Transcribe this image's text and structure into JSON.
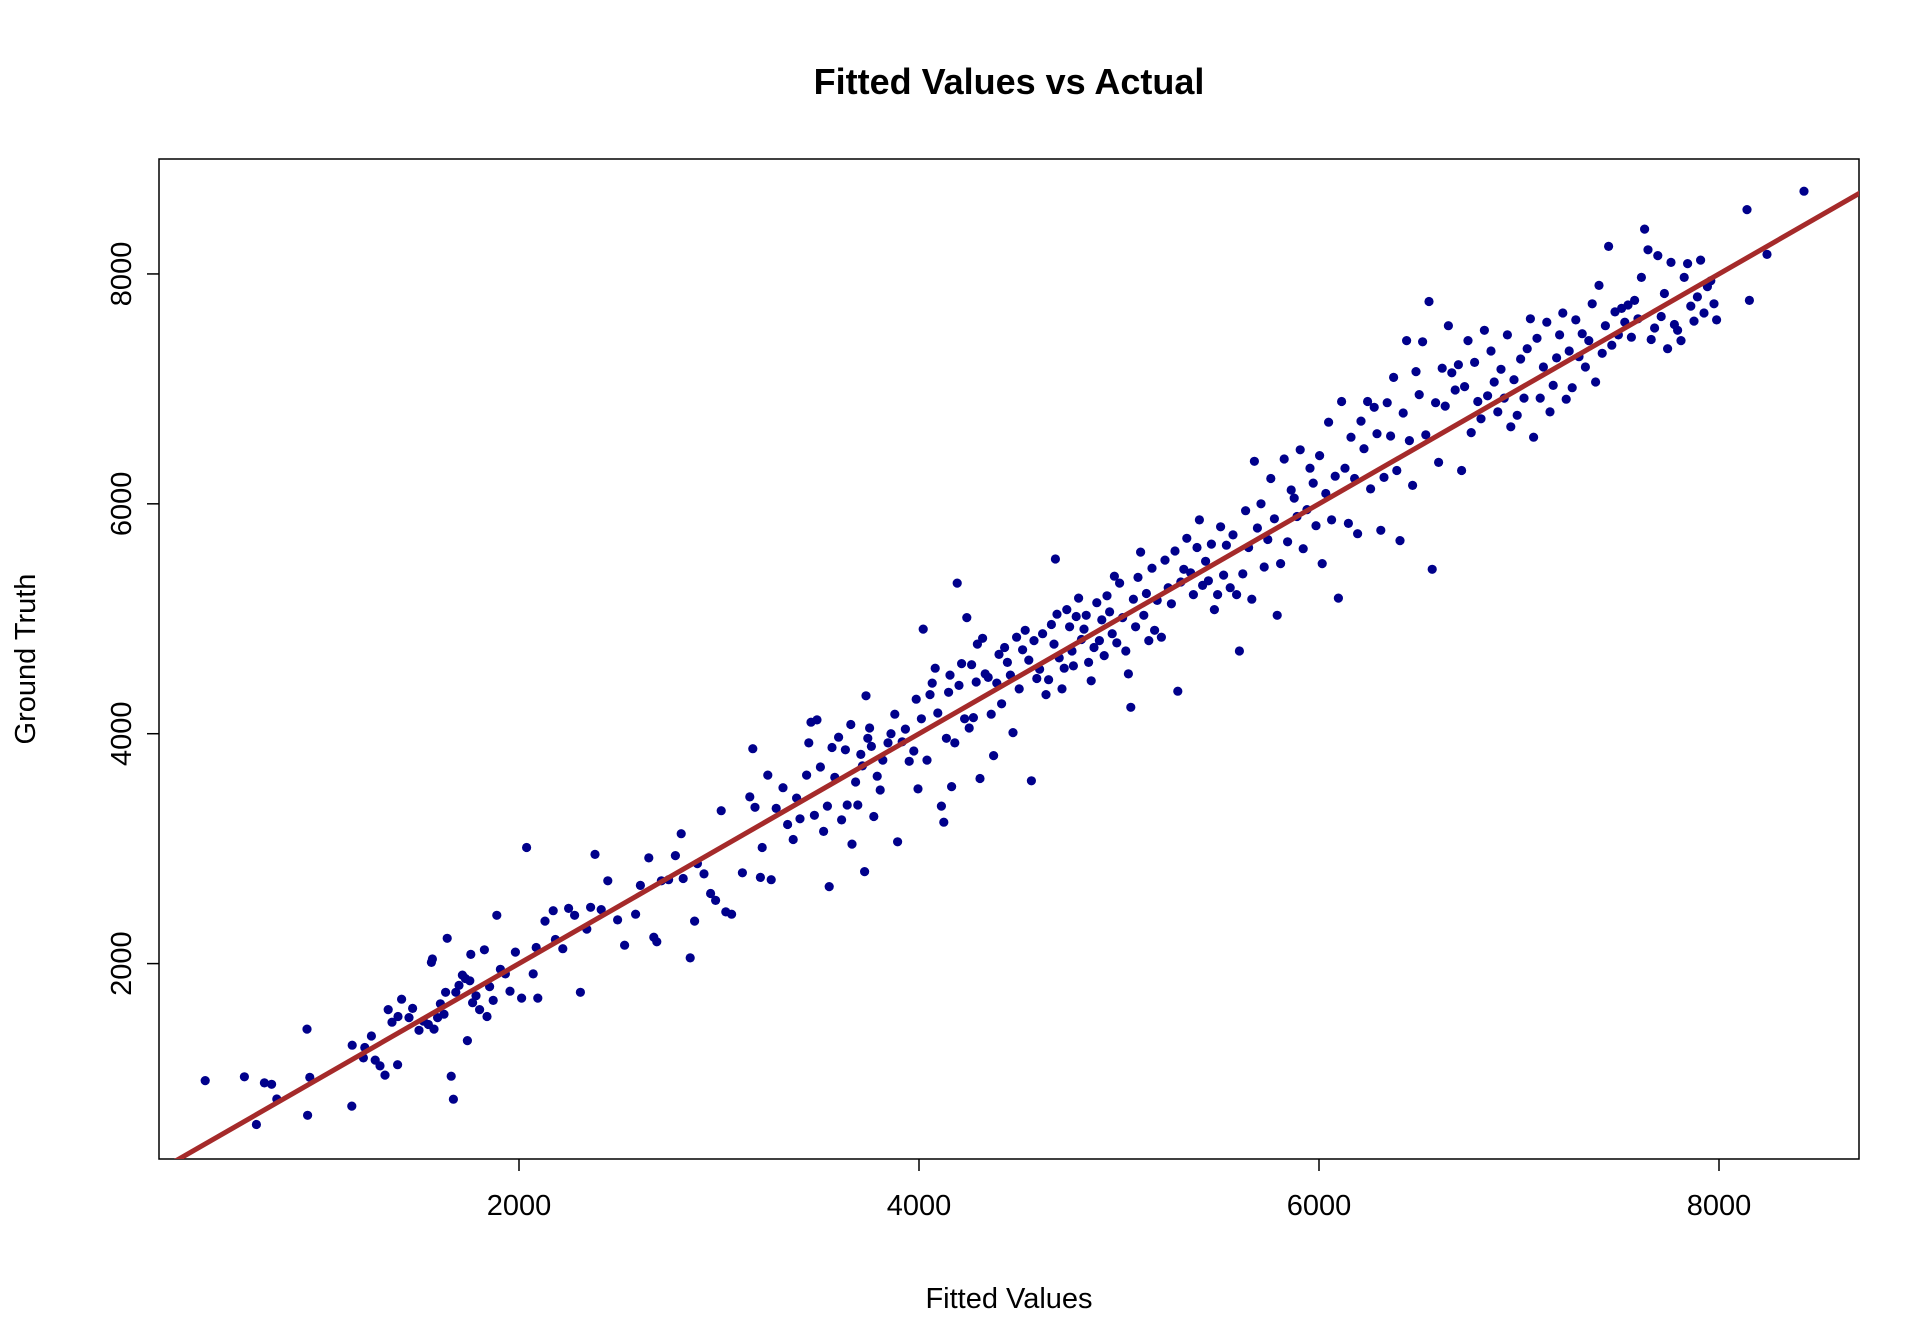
{
  "chart_data": {
    "type": "scatter",
    "title": "Fitted Values vs Actual",
    "xlabel": "Fitted Values",
    "ylabel": "Ground Truth",
    "xlim": [
      200,
      8700
    ],
    "ylim": [
      300,
      9000
    ],
    "xticks": [
      "2000",
      "4000",
      "6000",
      "8000"
    ],
    "yticks": [
      "2000",
      "4000",
      "6000",
      "8000"
    ],
    "grid": false,
    "point_color": "#00008B",
    "line_color": "#A52A2A",
    "reference_line": {
      "slope": 1,
      "intercept": 0
    },
    "points": [
      [
        431,
        982
      ],
      [
        627,
        1015
      ],
      [
        687,
        600
      ],
      [
        727,
        962
      ],
      [
        763,
        950
      ],
      [
        789,
        822
      ],
      [
        940,
        1430
      ],
      [
        943,
        680
      ],
      [
        954,
        1010
      ],
      [
        1164,
        760
      ],
      [
        1166,
        1290
      ],
      [
        1222,
        1180
      ],
      [
        1229,
        1270
      ],
      [
        1262,
        1370
      ],
      [
        1281,
        1160
      ],
      [
        1305,
        1110
      ],
      [
        1330,
        1030
      ],
      [
        1346,
        1600
      ],
      [
        1365,
        1490
      ],
      [
        1393,
        1120
      ],
      [
        1395,
        1540
      ],
      [
        1413,
        1690
      ],
      [
        1450,
        1530
      ],
      [
        1468,
        1610
      ],
      [
        1500,
        1420
      ],
      [
        1522,
        1500
      ],
      [
        1547,
        1470
      ],
      [
        1562,
        2010
      ],
      [
        1567,
        2040
      ],
      [
        1575,
        1430
      ],
      [
        1593,
        1530
      ],
      [
        1607,
        1650
      ],
      [
        1625,
        1560
      ],
      [
        1633,
        1750
      ],
      [
        1641,
        2220
      ],
      [
        1661,
        1020
      ],
      [
        1672,
        820
      ],
      [
        1684,
        1750
      ],
      [
        1700,
        1810
      ],
      [
        1717,
        1900
      ],
      [
        1732,
        1870
      ],
      [
        1742,
        1330
      ],
      [
        1754,
        1850
      ],
      [
        1759,
        2080
      ],
      [
        1768,
        1660
      ],
      [
        1785,
        1720
      ],
      [
        1803,
        1600
      ],
      [
        1827,
        2120
      ],
      [
        1840,
        1540
      ],
      [
        1853,
        1800
      ],
      [
        1871,
        1680
      ],
      [
        1889,
        2420
      ],
      [
        1907,
        1950
      ],
      [
        1932,
        1910
      ],
      [
        1955,
        1760
      ],
      [
        1982,
        2100
      ],
      [
        2013,
        1700
      ],
      [
        2038,
        3010
      ],
      [
        2071,
        1910
      ],
      [
        2086,
        2140
      ],
      [
        2094,
        1700
      ],
      [
        2130,
        2370
      ],
      [
        2171,
        2460
      ],
      [
        2182,
        2210
      ],
      [
        2219,
        2130
      ],
      [
        2248,
        2480
      ],
      [
        2278,
        2420
      ],
      [
        2307,
        1750
      ],
      [
        2339,
        2300
      ],
      [
        2358,
        2490
      ],
      [
        2380,
        2950
      ],
      [
        2411,
        2470
      ],
      [
        2444,
        2720
      ],
      [
        2493,
        2380
      ],
      [
        2528,
        2160
      ],
      [
        2583,
        2430
      ],
      [
        2607,
        2680
      ],
      [
        2649,
        2920
      ],
      [
        2674,
        2230
      ],
      [
        2689,
        2190
      ],
      [
        2712,
        2720
      ],
      [
        2748,
        2730
      ],
      [
        2782,
        2940
      ],
      [
        2811,
        3130
      ],
      [
        2821,
        2740
      ],
      [
        2856,
        2050
      ],
      [
        2878,
        2370
      ],
      [
        2892,
        2870
      ],
      [
        2925,
        2780
      ],
      [
        2958,
        2610
      ],
      [
        2983,
        2550
      ],
      [
        3011,
        3330
      ],
      [
        3034,
        2450
      ],
      [
        3063,
        2430
      ],
      [
        3117,
        2790
      ],
      [
        3154,
        3450
      ],
      [
        3169,
        3870
      ],
      [
        3180,
        3360
      ],
      [
        3207,
        2750
      ],
      [
        3216,
        3010
      ],
      [
        3244,
        3640
      ],
      [
        3261,
        2730
      ],
      [
        3286,
        3350
      ],
      [
        3320,
        3530
      ],
      [
        3343,
        3210
      ],
      [
        3371,
        3080
      ],
      [
        3388,
        3440
      ],
      [
        3405,
        3260
      ],
      [
        3438,
        3640
      ],
      [
        3449,
        3920
      ],
      [
        3460,
        4100
      ],
      [
        3477,
        3290
      ],
      [
        3490,
        4120
      ],
      [
        3507,
        3710
      ],
      [
        3523,
        3150
      ],
      [
        3542,
        3370
      ],
      [
        3551,
        2670
      ],
      [
        3565,
        3880
      ],
      [
        3579,
        3620
      ],
      [
        3598,
        3970
      ],
      [
        3613,
        3250
      ],
      [
        3632,
        3860
      ],
      [
        3641,
        3380
      ],
      [
        3659,
        4080
      ],
      [
        3665,
        3040
      ],
      [
        3683,
        3580
      ],
      [
        3694,
        3380
      ],
      [
        3709,
        3820
      ],
      [
        3717,
        3720
      ],
      [
        3728,
        2800
      ],
      [
        3735,
        4330
      ],
      [
        3744,
        3960
      ],
      [
        3753,
        4050
      ],
      [
        3762,
        3890
      ],
      [
        3774,
        3280
      ],
      [
        3791,
        3630
      ],
      [
        3806,
        3510
      ],
      [
        3819,
        3770
      ],
      [
        3845,
        3920
      ],
      [
        3860,
        4000
      ],
      [
        3879,
        4170
      ],
      [
        3893,
        3060
      ],
      [
        3916,
        3930
      ],
      [
        3932,
        4040
      ],
      [
        3951,
        3760
      ],
      [
        3974,
        3850
      ],
      [
        3986,
        4300
      ],
      [
        3995,
        3520
      ],
      [
        4012,
        4130
      ],
      [
        4021,
        4910
      ],
      [
        4040,
        3770
      ],
      [
        4055,
        4340
      ],
      [
        4066,
        4440
      ],
      [
        4081,
        4570
      ],
      [
        4094,
        4180
      ],
      [
        4112,
        3370
      ],
      [
        4124,
        3230
      ],
      [
        4137,
        3960
      ],
      [
        4148,
        4360
      ],
      [
        4155,
        4510
      ],
      [
        4163,
        3540
      ],
      [
        4179,
        3920
      ],
      [
        4191,
        5310
      ],
      [
        4200,
        4420
      ],
      [
        4213,
        4610
      ],
      [
        4228,
        4130
      ],
      [
        4239,
        5010
      ],
      [
        4251,
        4050
      ],
      [
        4263,
        4600
      ],
      [
        4272,
        4140
      ],
      [
        4286,
        4450
      ],
      [
        4292,
        4780
      ],
      [
        4305,
        3610
      ],
      [
        4318,
        4830
      ],
      [
        4331,
        4520
      ],
      [
        4346,
        4490
      ],
      [
        4361,
        4170
      ],
      [
        4373,
        3810
      ],
      [
        4389,
        4440
      ],
      [
        4400,
        4690
      ],
      [
        4413,
        4260
      ],
      [
        4428,
        4750
      ],
      [
        4442,
        4620
      ],
      [
        4457,
        4510
      ],
      [
        4470,
        4010
      ],
      [
        4488,
        4840
      ],
      [
        4501,
        4390
      ],
      [
        4518,
        4730
      ],
      [
        4531,
        4900
      ],
      [
        4549,
        4640
      ],
      [
        4562,
        3590
      ],
      [
        4575,
        4810
      ],
      [
        4589,
        4480
      ],
      [
        4603,
        4560
      ],
      [
        4618,
        4870
      ],
      [
        4635,
        4340
      ],
      [
        4648,
        4470
      ],
      [
        4662,
        4950
      ],
      [
        4675,
        4780
      ],
      [
        4682,
        5520
      ],
      [
        4690,
        5040
      ],
      [
        4701,
        4660
      ],
      [
        4715,
        4390
      ],
      [
        4726,
        4570
      ],
      [
        4739,
        5080
      ],
      [
        4753,
        4930
      ],
      [
        4765,
        4720
      ],
      [
        4772,
        4590
      ],
      [
        4786,
        5020
      ],
      [
        4798,
        5180
      ],
      [
        4812,
        4820
      ],
      [
        4825,
        4910
      ],
      [
        4836,
        5030
      ],
      [
        4848,
        4620
      ],
      [
        4861,
        4460
      ],
      [
        4875,
        4750
      ],
      [
        4889,
        5140
      ],
      [
        4902,
        4810
      ],
      [
        4914,
        4990
      ],
      [
        4926,
        4680
      ],
      [
        4940,
        5200
      ],
      [
        4953,
        5060
      ],
      [
        4966,
        4870
      ],
      [
        4977,
        5370
      ],
      [
        4989,
        4790
      ],
      [
        5003,
        5310
      ],
      [
        5018,
        5010
      ],
      [
        5034,
        4720
      ],
      [
        5047,
        4520
      ],
      [
        5059,
        4230
      ],
      [
        5072,
        5170
      ],
      [
        5083,
        4930
      ],
      [
        5095,
        5360
      ],
      [
        5108,
        5580
      ],
      [
        5124,
        5030
      ],
      [
        5137,
        5220
      ],
      [
        5149,
        4810
      ],
      [
        5165,
        5440
      ],
      [
        5178,
        4900
      ],
      [
        5191,
        5160
      ],
      [
        5212,
        4840
      ],
      [
        5230,
        5510
      ],
      [
        5246,
        5270
      ],
      [
        5262,
        5130
      ],
      [
        5280,
        5590
      ],
      [
        5294,
        4370
      ],
      [
        5309,
        5320
      ],
      [
        5324,
        5430
      ],
      [
        5339,
        5700
      ],
      [
        5358,
        5400
      ],
      [
        5372,
        5210
      ],
      [
        5390,
        5620
      ],
      [
        5402,
        5860
      ],
      [
        5418,
        5290
      ],
      [
        5433,
        5500
      ],
      [
        5447,
        5330
      ],
      [
        5462,
        5650
      ],
      [
        5477,
        5080
      ],
      [
        5493,
        5210
      ],
      [
        5508,
        5800
      ],
      [
        5523,
        5380
      ],
      [
        5537,
        5640
      ],
      [
        5556,
        5270
      ],
      [
        5570,
        5730
      ],
      [
        5588,
        5210
      ],
      [
        5602,
        4720
      ],
      [
        5619,
        5390
      ],
      [
        5633,
        5940
      ],
      [
        5648,
        5620
      ],
      [
        5664,
        5170
      ],
      [
        5677,
        6370
      ],
      [
        5692,
        5790
      ],
      [
        5710,
        6000
      ],
      [
        5726,
        5450
      ],
      [
        5744,
        5690
      ],
      [
        5759,
        6220
      ],
      [
        5777,
        5870
      ],
      [
        5791,
        5030
      ],
      [
        5808,
        5480
      ],
      [
        5826,
        6390
      ],
      [
        5843,
        5670
      ],
      [
        5861,
        6120
      ],
      [
        5876,
        6050
      ],
      [
        5890,
        5890
      ],
      [
        5906,
        6470
      ],
      [
        5921,
        5610
      ],
      [
        5940,
        5950
      ],
      [
        5955,
        6310
      ],
      [
        5971,
        6180
      ],
      [
        5985,
        5810
      ],
      [
        6003,
        6420
      ],
      [
        6016,
        5480
      ],
      [
        6034,
        6090
      ],
      [
        6048,
        6710
      ],
      [
        6063,
        5860
      ],
      [
        6081,
        6240
      ],
      [
        6097,
        5180
      ],
      [
        6113,
        6890
      ],
      [
        6130,
        6310
      ],
      [
        6147,
        5830
      ],
      [
        6160,
        6580
      ],
      [
        6178,
        6220
      ],
      [
        6193,
        5740
      ],
      [
        6210,
        6720
      ],
      [
        6225,
        6480
      ],
      [
        6243,
        6890
      ],
      [
        6258,
        6130
      ],
      [
        6276,
        6840
      ],
      [
        6290,
        6610
      ],
      [
        6309,
        5770
      ],
      [
        6325,
        6230
      ],
      [
        6341,
        6880
      ],
      [
        6358,
        6590
      ],
      [
        6373,
        7100
      ],
      [
        6389,
        6290
      ],
      [
        6405,
        5680
      ],
      [
        6421,
        6790
      ],
      [
        6438,
        7420
      ],
      [
        6452,
        6550
      ],
      [
        6468,
        6160
      ],
      [
        6485,
        7150
      ],
      [
        6501,
        6950
      ],
      [
        6518,
        7410
      ],
      [
        6534,
        6600
      ],
      [
        6550,
        7760
      ],
      [
        6566,
        5430
      ],
      [
        6583,
        6880
      ],
      [
        6598,
        6360
      ],
      [
        6616,
        7180
      ],
      [
        6631,
        6850
      ],
      [
        6647,
        7550
      ],
      [
        6664,
        7140
      ],
      [
        6681,
        6990
      ],
      [
        6697,
        7210
      ],
      [
        6713,
        6290
      ],
      [
        6728,
        7020
      ],
      [
        6745,
        7420
      ],
      [
        6761,
        6620
      ],
      [
        6778,
        7230
      ],
      [
        6794,
        6890
      ],
      [
        6810,
        6740
      ],
      [
        6827,
        7510
      ],
      [
        6843,
        6940
      ],
      [
        6860,
        7330
      ],
      [
        6876,
        7060
      ],
      [
        6894,
        6800
      ],
      [
        6910,
        7170
      ],
      [
        6926,
        6920
      ],
      [
        6942,
        7470
      ],
      [
        6959,
        6670
      ],
      [
        6975,
        7080
      ],
      [
        6991,
        6770
      ],
      [
        7008,
        7260
      ],
      [
        7025,
        6920
      ],
      [
        7041,
        7350
      ],
      [
        7057,
        7610
      ],
      [
        7073,
        6580
      ],
      [
        7090,
        7440
      ],
      [
        7106,
        6920
      ],
      [
        7122,
        7190
      ],
      [
        7139,
        7580
      ],
      [
        7155,
        6800
      ],
      [
        7171,
        7030
      ],
      [
        7188,
        7270
      ],
      [
        7203,
        7470
      ],
      [
        7219,
        7660
      ],
      [
        7236,
        6910
      ],
      [
        7251,
        7330
      ],
      [
        7266,
        7010
      ],
      [
        7284,
        7600
      ],
      [
        7300,
        7280
      ],
      [
        7316,
        7480
      ],
      [
        7332,
        7190
      ],
      [
        7349,
        7420
      ],
      [
        7366,
        7740
      ],
      [
        7383,
        7060
      ],
      [
        7400,
        7900
      ],
      [
        7416,
        7310
      ],
      [
        7432,
        7550
      ],
      [
        7448,
        8240
      ],
      [
        7464,
        7380
      ],
      [
        7480,
        7670
      ],
      [
        7497,
        7470
      ],
      [
        7513,
        7700
      ],
      [
        7529,
        7580
      ],
      [
        7545,
        7730
      ],
      [
        7562,
        7450
      ],
      [
        7578,
        7770
      ],
      [
        7595,
        7610
      ],
      [
        7612,
        7970
      ],
      [
        7628,
        8390
      ],
      [
        7645,
        8210
      ],
      [
        7661,
        7430
      ],
      [
        7678,
        7530
      ],
      [
        7694,
        8160
      ],
      [
        7711,
        7630
      ],
      [
        7727,
        7830
      ],
      [
        7743,
        7350
      ],
      [
        7760,
        8100
      ],
      [
        7777,
        7560
      ],
      [
        7793,
        7510
      ],
      [
        7810,
        7420
      ],
      [
        7826,
        7970
      ],
      [
        7843,
        8090
      ],
      [
        7859,
        7720
      ],
      [
        7875,
        7590
      ],
      [
        7892,
        7800
      ],
      [
        7908,
        8120
      ],
      [
        7925,
        7660
      ],
      [
        7942,
        7890
      ],
      [
        7959,
        7940
      ],
      [
        7975,
        7740
      ],
      [
        7988,
        7600
      ],
      [
        8140,
        8560
      ],
      [
        8152,
        7770
      ],
      [
        8240,
        8170
      ],
      [
        8425,
        8720
      ]
    ]
  }
}
